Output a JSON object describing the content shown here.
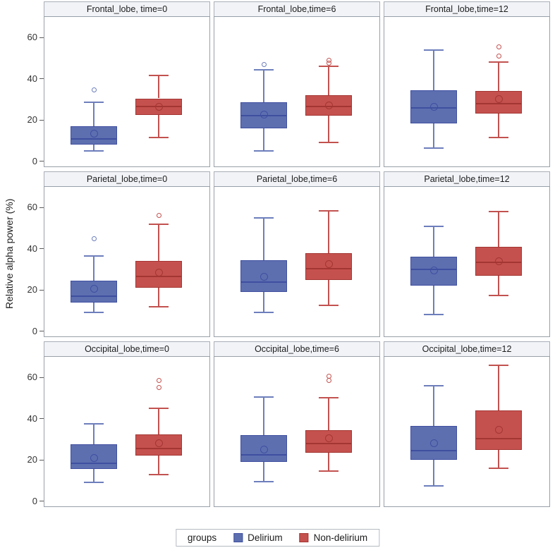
{
  "figure": {
    "ylabel": "Relative alpha power (%)",
    "legend": {
      "title": "groups",
      "items": [
        {
          "label": "Delirium",
          "fill": "#5e6fb0",
          "stroke": "#3f4fa0"
        },
        {
          "label": "Non-delirium",
          "fill": "#c5514e",
          "stroke": "#a33633"
        }
      ]
    }
  },
  "chart_data": {
    "type": "boxplot-grid",
    "title": "",
    "ylabel": "Relative alpha power (%)",
    "rows": [
      "Frontal_lobe",
      "Parietal_lobe",
      "Occipital_lobe"
    ],
    "cols": [
      "time=0",
      "time=6",
      "time=12"
    ],
    "groups": [
      "Delirium",
      "Non-delirium"
    ],
    "ylim": [
      -2.5,
      70
    ],
    "yticks": [
      0,
      20,
      40,
      60
    ],
    "grid": false,
    "legend_position": "bottom",
    "colors": [
      {
        "name": "Delirium",
        "fill": "#5e6fb0",
        "stroke": "#3f4fa0",
        "whisker": "#6d7ebc"
      },
      {
        "name": "Non-delirium",
        "fill": "#c5514e",
        "stroke": "#a33633",
        "whisker": "#c2524f"
      }
    ],
    "panels": [
      {
        "title": "Frontal_lobe, time=0",
        "boxes": [
          {
            "group": "Delirium",
            "whislo": 5,
            "q1": 8,
            "med": 11,
            "mean": 13.5,
            "q3": 17,
            "whishi": 28.5,
            "outliers": [
              34.5
            ]
          },
          {
            "group": "Non-delirium",
            "whislo": 11.5,
            "q1": 22.5,
            "med": 26.5,
            "mean": 26.5,
            "q3": 30.5,
            "whishi": 41.5,
            "outliers": []
          }
        ]
      },
      {
        "title": "Frontal_lobe,time=6",
        "boxes": [
          {
            "group": "Delirium",
            "whislo": 5,
            "q1": 16,
            "med": 22,
            "mean": 22.5,
            "q3": 28.5,
            "whishi": 44.5,
            "outliers": [
              47
            ]
          },
          {
            "group": "Non-delirium",
            "whislo": 9,
            "q1": 22,
            "med": 26.5,
            "mean": 27,
            "q3": 32,
            "whishi": 46,
            "outliers": [
              47.5,
              49
            ]
          }
        ]
      },
      {
        "title": "Frontal_lobe,time=12",
        "boxes": [
          {
            "group": "Delirium",
            "whislo": 6.5,
            "q1": 18.5,
            "med": 26,
            "mean": 26.5,
            "q3": 34.5,
            "whishi": 54,
            "outliers": []
          },
          {
            "group": "Non-delirium",
            "whislo": 11.5,
            "q1": 23,
            "med": 28,
            "mean": 30,
            "q3": 34,
            "whishi": 48,
            "outliers": [
              51,
              55.5
            ]
          }
        ]
      },
      {
        "title": "Parietal_lobe,time=0",
        "boxes": [
          {
            "group": "Delirium",
            "whislo": 9,
            "q1": 14,
            "med": 17,
            "mean": 20.5,
            "q3": 24.5,
            "whishi": 36.5,
            "outliers": [
              45
            ]
          },
          {
            "group": "Non-delirium",
            "whislo": 12,
            "q1": 21,
            "med": 26.5,
            "mean": 28.5,
            "q3": 34,
            "whishi": 52,
            "outliers": [
              56
            ]
          }
        ]
      },
      {
        "title": "Parietal_lobe,time=6",
        "boxes": [
          {
            "group": "Delirium",
            "whislo": 9,
            "q1": 19,
            "med": 24,
            "mean": 26.5,
            "q3": 34.5,
            "whishi": 55,
            "outliers": []
          },
          {
            "group": "Non-delirium",
            "whislo": 12.5,
            "q1": 25,
            "med": 30.5,
            "mean": 32.5,
            "q3": 38,
            "whishi": 58.5,
            "outliers": []
          }
        ]
      },
      {
        "title": "Parietal_lobe,time=12",
        "boxes": [
          {
            "group": "Delirium",
            "whislo": 8,
            "q1": 22,
            "med": 30,
            "mean": 29.5,
            "q3": 36,
            "whishi": 51,
            "outliers": []
          },
          {
            "group": "Non-delirium",
            "whislo": 17.5,
            "q1": 27,
            "med": 33.5,
            "mean": 34,
            "q3": 41,
            "whishi": 58,
            "outliers": []
          }
        ]
      },
      {
        "title": "Occipital_lobe,time=0",
        "boxes": [
          {
            "group": "Delirium",
            "whislo": 9,
            "q1": 15.5,
            "med": 18.5,
            "mean": 21,
            "q3": 27.5,
            "whishi": 37.5,
            "outliers": []
          },
          {
            "group": "Non-delirium",
            "whislo": 13,
            "q1": 22,
            "med": 25.5,
            "mean": 28,
            "q3": 32.5,
            "whishi": 45,
            "outliers": [
              55,
              58.5
            ]
          }
        ]
      },
      {
        "title": "Occipital_lobe,time=6",
        "boxes": [
          {
            "group": "Delirium",
            "whislo": 9.5,
            "q1": 19,
            "med": 22.5,
            "mean": 25,
            "q3": 32,
            "whishi": 50.5,
            "outliers": []
          },
          {
            "group": "Non-delirium",
            "whislo": 14.5,
            "q1": 23.5,
            "med": 28,
            "mean": 30.5,
            "q3": 34.5,
            "whishi": 50,
            "outliers": [
              58.5,
              60.5
            ]
          }
        ]
      },
      {
        "title": "Occipital_lobe,time=12",
        "boxes": [
          {
            "group": "Delirium",
            "whislo": 7.5,
            "q1": 20,
            "med": 24.5,
            "mean": 28,
            "q3": 36.5,
            "whishi": 56,
            "outliers": []
          },
          {
            "group": "Non-delirium",
            "whislo": 16,
            "q1": 25,
            "med": 30.5,
            "mean": 34.5,
            "q3": 44,
            "whishi": 66,
            "outliers": []
          }
        ]
      }
    ]
  }
}
